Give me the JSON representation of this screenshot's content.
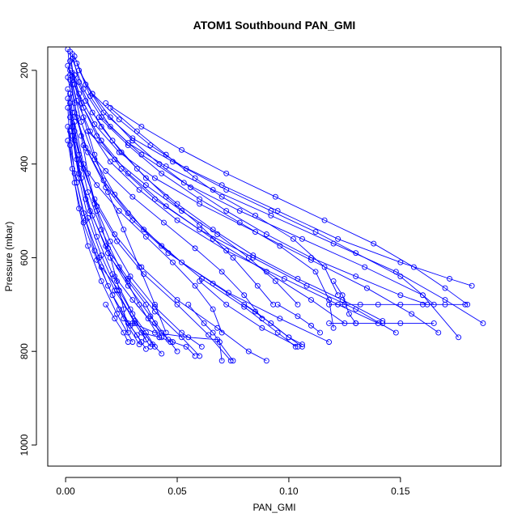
{
  "chart_data": {
    "type": "line",
    "title": "ATOM1 Southbound PAN_GMI",
    "xlabel": "PAN_GMI",
    "ylabel": "Pressure (mbar)",
    "xlim": [
      -0.008,
      0.195
    ],
    "ylim": [
      1045,
      150
    ],
    "y_reversed": true,
    "x_ticks": [
      0.0,
      0.05,
      0.1,
      0.15
    ],
    "x_tick_labels": [
      "0.00",
      "0.05",
      "0.10",
      "0.15"
    ],
    "y_ticks": [
      200,
      400,
      600,
      800,
      1000
    ],
    "y_tick_labels": [
      "200",
      "400",
      "600",
      "800",
      "1000"
    ],
    "grid": false,
    "legend": "none",
    "series_style": {
      "color": "#0000ff",
      "marker": "open-circle",
      "line": "solid"
    },
    "series": [
      {
        "x": [
          0.001,
          0.002,
          0.004,
          0.007,
          0.01,
          0.014,
          0.019,
          0.023,
          0.026,
          0.028
        ],
        "y": [
          155,
          210,
          270,
          340,
          420,
          500,
          580,
          650,
          710,
          760
        ]
      },
      {
        "x": [
          0.002,
          0.004,
          0.008,
          0.013,
          0.019,
          0.026,
          0.033,
          0.04,
          0.045
        ],
        "y": [
          160,
          230,
          300,
          380,
          460,
          540,
          620,
          700,
          760
        ]
      },
      {
        "x": [
          0.003,
          0.006,
          0.012,
          0.021,
          0.032,
          0.045,
          0.06,
          0.075,
          0.086,
          0.093
        ],
        "y": [
          165,
          225,
          290,
          350,
          410,
          470,
          530,
          600,
          660,
          700
        ]
      },
      {
        "x": [
          0.004,
          0.009,
          0.017,
          0.03,
          0.048,
          0.07,
          0.095,
          0.122,
          0.15,
          0.172,
          0.182
        ],
        "y": [
          170,
          230,
          290,
          345,
          395,
          445,
          500,
          560,
          610,
          645,
          660
        ]
      },
      {
        "x": [
          0.003,
          0.008,
          0.016,
          0.028,
          0.045,
          0.066,
          0.092,
          0.12,
          0.148,
          0.17,
          0.187
        ],
        "y": [
          175,
          240,
          300,
          355,
          405,
          455,
          510,
          570,
          630,
          690,
          740
        ]
      },
      {
        "x": [
          0.002,
          0.006,
          0.013,
          0.024,
          0.04,
          0.06,
          0.085,
          0.11,
          0.135,
          0.155,
          0.167
        ],
        "y": [
          180,
          250,
          315,
          375,
          430,
          485,
          545,
          605,
          665,
          720,
          760
        ]
      },
      {
        "x": [
          0.005,
          0.011,
          0.02,
          0.034,
          0.053,
          0.078,
          0.106,
          0.134,
          0.16,
          0.176
        ],
        "y": [
          185,
          255,
          320,
          380,
          440,
          500,
          560,
          620,
          680,
          770
        ]
      },
      {
        "x": [
          0.001,
          0.005,
          0.011,
          0.02,
          0.033,
          0.05,
          0.072,
          0.098,
          0.122,
          0.14
        ],
        "y": [
          190,
          265,
          330,
          395,
          455,
          520,
          585,
          645,
          700,
          740
        ]
      },
      {
        "x": [
          0.002,
          0.007,
          0.014,
          0.025,
          0.04,
          0.06,
          0.084,
          0.108,
          0.13,
          0.148
        ],
        "y": [
          200,
          270,
          340,
          410,
          475,
          540,
          600,
          660,
          710,
          760
        ]
      },
      {
        "x": [
          0.003,
          0.008,
          0.016,
          0.028,
          0.045,
          0.066,
          0.09,
          0.11,
          0.125
        ],
        "y": [
          205,
          280,
          350,
          420,
          490,
          560,
          630,
          690,
          740
        ]
      },
      {
        "x": [
          0.001,
          0.004,
          0.009,
          0.017,
          0.028,
          0.043,
          0.061,
          0.08,
          0.095,
          0.103
        ],
        "y": [
          215,
          290,
          365,
          435,
          505,
          575,
          645,
          705,
          760,
          790
        ]
      },
      {
        "x": [
          0.002,
          0.005,
          0.01,
          0.018,
          0.03,
          0.046,
          0.066,
          0.085,
          0.1,
          0.106
        ],
        "y": [
          220,
          300,
          375,
          450,
          520,
          590,
          655,
          715,
          770,
          785
        ]
      },
      {
        "x": [
          0.003,
          0.007,
          0.013,
          0.022,
          0.035,
          0.052,
          0.073,
          0.096,
          0.118
        ],
        "y": [
          230,
          310,
          390,
          465,
          540,
          610,
          675,
          730,
          780
        ]
      },
      {
        "x": [
          0.001,
          0.003,
          0.007,
          0.013,
          0.022,
          0.034,
          0.05,
          0.068,
          0.082,
          0.09
        ],
        "y": [
          240,
          320,
          400,
          475,
          550,
          620,
          690,
          750,
          800,
          820
        ]
      },
      {
        "x": [
          0.002,
          0.004,
          0.008,
          0.014,
          0.023,
          0.035,
          0.05,
          0.064,
          0.074
        ],
        "y": [
          250,
          330,
          410,
          490,
          565,
          635,
          700,
          765,
          820
        ]
      },
      {
        "x": [
          0.001,
          0.003,
          0.006,
          0.011,
          0.018,
          0.028,
          0.04,
          0.052,
          0.06
        ],
        "y": [
          260,
          340,
          420,
          500,
          575,
          645,
          715,
          770,
          810
        ]
      },
      {
        "x": [
          0.002,
          0.004,
          0.007,
          0.012,
          0.019,
          0.028,
          0.038,
          0.046,
          0.05
        ],
        "y": [
          270,
          350,
          430,
          510,
          590,
          660,
          725,
          775,
          800
        ]
      },
      {
        "x": [
          0.001,
          0.002,
          0.005,
          0.009,
          0.015,
          0.022,
          0.031,
          0.039,
          0.043
        ],
        "y": [
          280,
          360,
          440,
          520,
          600,
          670,
          735,
          785,
          805
        ]
      },
      {
        "x": [
          0.003,
          0.006,
          0.01,
          0.016,
          0.024,
          0.033,
          0.042
        ],
        "y": [
          290,
          380,
          460,
          540,
          620,
          700,
          770
        ]
      },
      {
        "x": [
          0.002,
          0.005,
          0.009,
          0.014,
          0.021,
          0.029,
          0.036
        ],
        "y": [
          300,
          390,
          475,
          555,
          635,
          710,
          775
        ]
      },
      {
        "x": [
          0.004,
          0.008,
          0.013,
          0.02,
          0.029,
          0.04,
          0.052,
          0.061
        ],
        "y": [
          310,
          400,
          485,
          565,
          640,
          705,
          760,
          790
        ]
      },
      {
        "x": [
          0.001,
          0.003,
          0.006,
          0.01,
          0.016,
          0.023,
          0.03
        ],
        "y": [
          320,
          410,
          495,
          575,
          650,
          720,
          780
        ]
      },
      {
        "x": [
          0.002,
          0.004,
          0.008,
          0.013,
          0.019,
          0.026,
          0.033
        ],
        "y": [
          330,
          420,
          505,
          585,
          660,
          730,
          785
        ]
      },
      {
        "x": [
          0.003,
          0.006,
          0.01,
          0.016,
          0.023,
          0.031,
          0.038
        ],
        "y": [
          340,
          430,
          515,
          595,
          670,
          740,
          790
        ]
      },
      {
        "x": [
          0.001,
          0.004,
          0.008,
          0.014,
          0.021,
          0.029,
          0.036
        ],
        "y": [
          350,
          440,
          525,
          605,
          680,
          745,
          795
        ]
      },
      {
        "x": [
          0.02,
          0.032,
          0.045,
          0.058,
          0.07,
          0.085,
          0.102,
          0.116,
          0.122
        ],
        "y": [
          280,
          330,
          380,
          430,
          470,
          510,
          560,
          620,
          680
        ]
      },
      {
        "x": [
          0.015,
          0.028,
          0.043,
          0.06,
          0.078,
          0.096,
          0.112,
          0.118,
          0.12
        ],
        "y": [
          300,
          360,
          420,
          475,
          525,
          575,
          630,
          690,
          750
        ]
      },
      {
        "x": [
          0.01,
          0.022,
          0.036,
          0.052,
          0.068,
          0.082,
          0.094,
          0.104
        ],
        "y": [
          330,
          390,
          445,
          500,
          550,
          600,
          650,
          700
        ]
      },
      {
        "x": [
          0.008,
          0.018,
          0.03,
          0.044,
          0.058,
          0.07,
          0.08,
          0.088
        ],
        "y": [
          360,
          415,
          470,
          525,
          580,
          630,
          680,
          730
        ]
      },
      {
        "x": [
          0.006,
          0.014,
          0.024,
          0.036,
          0.048,
          0.058,
          0.066,
          0.07
        ],
        "y": [
          390,
          445,
          500,
          555,
          610,
          660,
          710,
          760
        ]
      },
      {
        "x": [
          0.012,
          0.024,
          0.038,
          0.054,
          0.072,
          0.092,
          0.112,
          0.13,
          0.15,
          0.165
        ],
        "y": [
          250,
          305,
          360,
          410,
          455,
          500,
          545,
          590,
          640,
          700
        ]
      },
      {
        "x": [
          0.018,
          0.034,
          0.052,
          0.072,
          0.094,
          0.116,
          0.138,
          0.156,
          0.17,
          0.18
        ],
        "y": [
          270,
          320,
          370,
          420,
          470,
          520,
          570,
          620,
          665,
          700
        ]
      },
      {
        "x": [
          0.006,
          0.012,
          0.02,
          0.03,
          0.042,
          0.056,
          0.072,
          0.09,
          0.11,
          0.13,
          0.15,
          0.162
        ],
        "y": [
          200,
          250,
          300,
          350,
          400,
          450,
          500,
          550,
          600,
          640,
          680,
          700
        ]
      },
      {
        "x": [
          0.004,
          0.009,
          0.016,
          0.025,
          0.036,
          0.05,
          0.066,
          0.084,
          0.104,
          0.124,
          0.142
        ],
        "y": [
          210,
          265,
          320,
          375,
          430,
          485,
          540,
          595,
          645,
          690,
          735
        ]
      },
      {
        "x": [
          0.02,
          0.028,
          0.036,
          0.04,
          0.043
        ],
        "y": [
          600,
          650,
          700,
          740,
          770
        ]
      },
      {
        "x": [
          0.016,
          0.024,
          0.03,
          0.036,
          0.04
        ],
        "y": [
          620,
          670,
          720,
          760,
          790
        ]
      },
      {
        "x": [
          0.022,
          0.03,
          0.037,
          0.043,
          0.047
        ],
        "y": [
          640,
          690,
          730,
          760,
          780
        ]
      },
      {
        "x": [
          0.018,
          0.022,
          0.026,
          0.028
        ],
        "y": [
          700,
          730,
          760,
          780
        ]
      },
      {
        "x": [
          0.024,
          0.028,
          0.032,
          0.034
        ],
        "y": [
          710,
          740,
          765,
          780
        ]
      },
      {
        "x": [
          0.03,
          0.04,
          0.055,
          0.068,
          0.075
        ],
        "y": [
          740,
          760,
          770,
          775,
          820
        ]
      },
      {
        "x": [
          0.034,
          0.042,
          0.048,
          0.054,
          0.058
        ],
        "y": [
          760,
          770,
          780,
          790,
          810
        ]
      },
      {
        "x": [
          0.055,
          0.062,
          0.066,
          0.069,
          0.07
        ],
        "y": [
          700,
          740,
          760,
          780,
          820
        ]
      },
      {
        "x": [
          0.06,
          0.072,
          0.088,
          0.104
        ],
        "y": [
          650,
          700,
          750,
          790
        ]
      },
      {
        "x": [
          0.08,
          0.092,
          0.1,
          0.106
        ],
        "y": [
          700,
          740,
          770,
          790
        ]
      },
      {
        "x": [
          0.095,
          0.104,
          0.11,
          0.114
        ],
        "y": [
          700,
          725,
          745,
          760
        ]
      },
      {
        "x": [
          0.118,
          0.125,
          0.132,
          0.14,
          0.15,
          0.16,
          0.17,
          0.179
        ],
        "y": [
          700,
          700,
          700,
          700,
          700,
          700,
          700,
          700
        ]
      },
      {
        "x": [
          0.118,
          0.13,
          0.142,
          0.15,
          0.165
        ],
        "y": [
          740,
          740,
          740,
          740,
          740
        ]
      },
      {
        "x": [
          0.12,
          0.124,
          0.127,
          0.13
        ],
        "y": [
          650,
          680,
          720,
          740
        ]
      }
    ]
  }
}
